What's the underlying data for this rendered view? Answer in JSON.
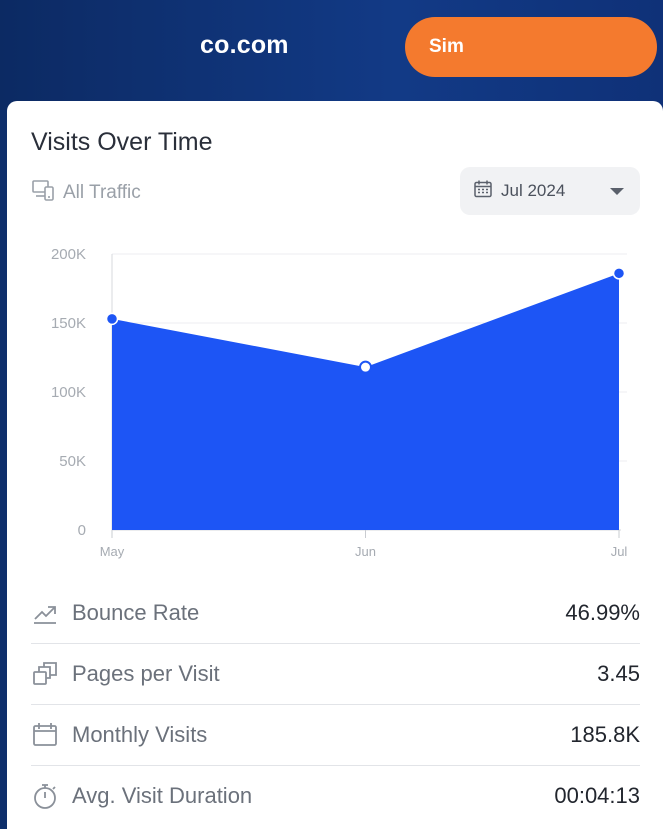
{
  "header": {
    "site_name": "co.com",
    "cta_label": "Sim"
  },
  "card": {
    "title": "Visits Over Time",
    "traffic_filter": "All Traffic",
    "date_selected": "Jul 2024"
  },
  "colors": {
    "area_fill": "#1d55f5",
    "point": "#1d55f5",
    "cta": "#f47a2e",
    "header_bg": "#0e2f6b"
  },
  "chart_data": {
    "type": "area",
    "categories": [
      "May",
      "Jun",
      "Jul"
    ],
    "series": [
      {
        "values": [
          153000,
          118000,
          186000
        ]
      }
    ],
    "ylim": [
      0,
      200000
    ],
    "y_ticks": [
      "0",
      "50K",
      "100K",
      "150K",
      "200K"
    ],
    "grid": true
  },
  "metrics": [
    {
      "icon": "trend-arrow-icon",
      "label": "Bounce Rate",
      "value": "46.99%"
    },
    {
      "icon": "pages-stack-icon",
      "label": "Pages per Visit",
      "value": "3.45"
    },
    {
      "icon": "calendar-icon",
      "label": "Monthly Visits",
      "value": "185.8K"
    },
    {
      "icon": "stopwatch-icon",
      "label": "Avg. Visit Duration",
      "value": "00:04:13"
    }
  ]
}
